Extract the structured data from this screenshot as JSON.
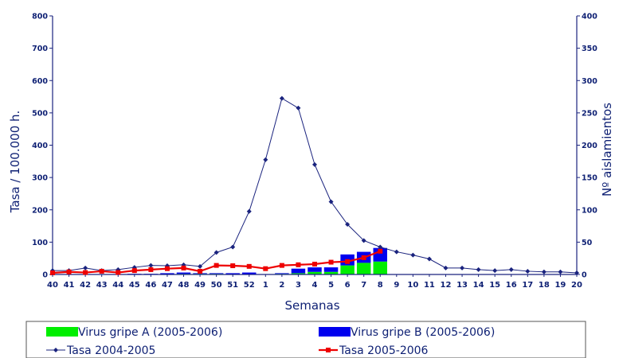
{
  "chart_data": {
    "type": "bar+line",
    "title": "",
    "xlabel": "Semanas",
    "ylabel_left": "Tasa / 100.000 h.",
    "ylabel_right": "Nº aislamientos",
    "ylim_left": [
      0,
      800
    ],
    "ylim_right": [
      0,
      400
    ],
    "yticks_left": [
      0,
      100,
      200,
      300,
      400,
      500,
      600,
      700,
      800
    ],
    "yticks_right": [
      0,
      50,
      100,
      150,
      200,
      250,
      300,
      350,
      400
    ],
    "categories": [
      "40",
      "41",
      "42",
      "43",
      "44",
      "45",
      "46",
      "47",
      "48",
      "49",
      "50",
      "51",
      "52",
      "1",
      "2",
      "3",
      "4",
      "5",
      "6",
      "7",
      "8",
      "9",
      "10",
      "11",
      "12",
      "13",
      "14",
      "15",
      "16",
      "17",
      "18",
      "19",
      "20"
    ],
    "legend_placement": "bottom",
    "series": [
      {
        "name": "Virus gripe A (2005-2006)",
        "type": "stacked-bar",
        "axis": "right",
        "color": "#00ee00",
        "values": [
          0,
          0,
          0,
          0,
          0,
          0,
          0,
          0,
          1,
          1,
          1,
          0,
          0,
          0,
          1,
          2,
          4,
          4,
          14,
          18,
          20,
          null,
          null,
          null,
          null,
          null,
          null,
          null,
          null,
          null,
          null,
          null,
          null
        ]
      },
      {
        "name": "Virus gripe B (2005-2006)",
        "type": "stacked-bar",
        "axis": "right",
        "color": "#0000ee",
        "values": [
          0,
          0,
          0,
          0,
          0,
          1,
          1,
          2,
          2,
          1,
          1,
          2,
          3,
          0,
          1,
          7,
          7,
          7,
          17,
          17,
          21,
          null,
          null,
          null,
          null,
          null,
          null,
          null,
          null,
          null,
          null,
          null,
          null
        ]
      },
      {
        "name": "Tasa 2004-2005",
        "type": "line",
        "axis": "left",
        "color": "#1a237e",
        "marker": "diamond",
        "values": [
          12,
          12,
          20,
          12,
          15,
          22,
          28,
          27,
          30,
          25,
          68,
          85,
          195,
          355,
          545,
          515,
          340,
          225,
          155,
          105,
          85,
          70,
          60,
          48,
          20,
          20,
          15,
          12,
          15,
          10,
          8,
          8,
          5
        ]
      },
      {
        "name": "Tasa 2005-2006",
        "type": "line",
        "axis": "left",
        "color": "#ee0000",
        "marker": "square",
        "values": [
          5,
          8,
          6,
          10,
          6,
          12,
          15,
          18,
          20,
          10,
          28,
          27,
          25,
          18,
          28,
          30,
          32,
          38,
          40,
          52,
          72,
          null,
          null,
          null,
          null,
          null,
          null,
          null,
          null,
          null,
          null,
          null,
          null
        ]
      }
    ]
  }
}
